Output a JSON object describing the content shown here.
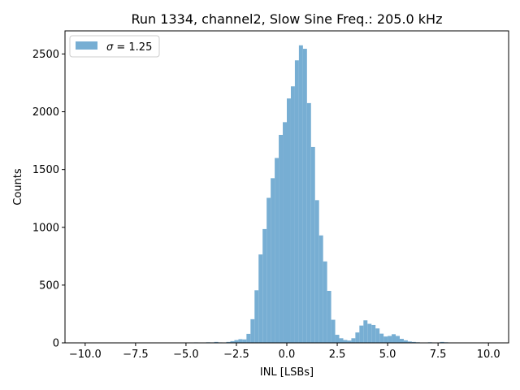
{
  "chart_data": {
    "type": "bar",
    "title": "Run 1334, channel2, Slow Sine Freq.: 205.0 kHz",
    "xlabel": "INL [LSBs]",
    "ylabel": "Counts",
    "xlim": [
      -11.0,
      11.0
    ],
    "ylim": [
      0,
      2700
    ],
    "xticks": [
      -10.0,
      -7.5,
      -5.0,
      -2.5,
      0.0,
      2.5,
      5.0,
      7.5,
      10.0
    ],
    "xtick_labels": [
      "−10.0",
      "−7.5",
      "−5.0",
      "−2.5",
      "0.0",
      "2.5",
      "5.0",
      "7.5",
      "10.0"
    ],
    "yticks": [
      0,
      500,
      1000,
      1500,
      2000,
      2500
    ],
    "ytick_labels": [
      "0",
      "500",
      "1000",
      "1500",
      "2000",
      "2500"
    ],
    "bin_start": -10.0,
    "bin_width": 0.2,
    "counts": [
      0,
      0,
      0,
      0,
      0,
      0,
      0,
      0,
      0,
      0,
      0,
      0,
      0,
      0,
      0,
      0,
      0,
      0,
      0,
      0,
      0,
      0,
      0,
      2,
      0,
      0,
      0,
      4,
      0,
      3,
      5,
      4,
      8,
      4,
      3,
      8,
      15,
      24,
      32,
      30,
      78,
      205,
      455,
      765,
      985,
      1255,
      1425,
      1600,
      1800,
      1910,
      2115,
      2220,
      2445,
      2575,
      2545,
      2075,
      1695,
      1235,
      930,
      705,
      450,
      200,
      70,
      40,
      25,
      20,
      40,
      90,
      150,
      195,
      165,
      155,
      125,
      80,
      55,
      60,
      75,
      60,
      35,
      22,
      12,
      8,
      5,
      2,
      3,
      5,
      0,
      3,
      8,
      5,
      0,
      2,
      0,
      0,
      0,
      0,
      0,
      0,
      0,
      0,
      0,
      0,
      0
    ],
    "series_color": "#77aed3",
    "legend": {
      "symbol": "σ",
      "label": " = 1.25",
      "location": "upper left"
    }
  }
}
